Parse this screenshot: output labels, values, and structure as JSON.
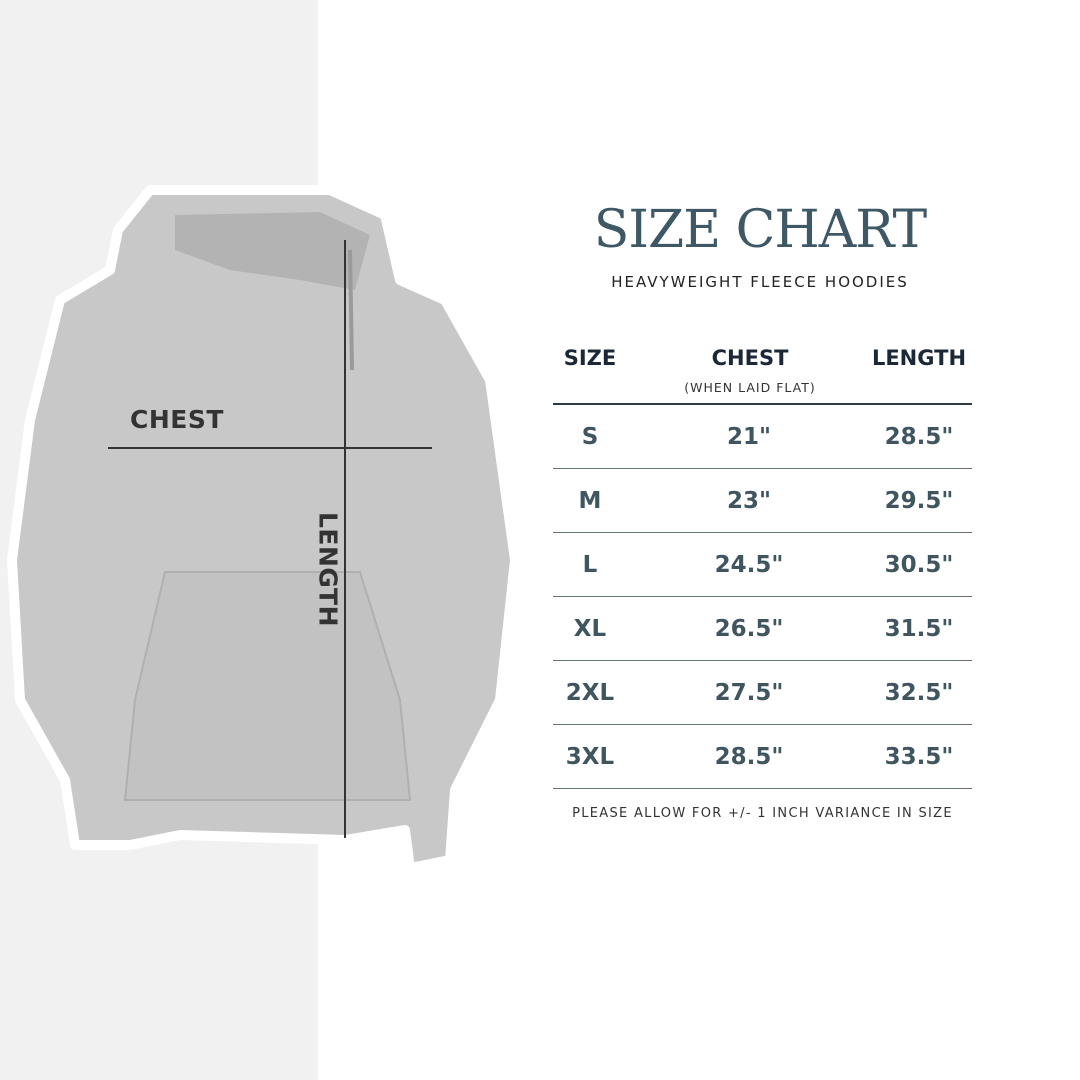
{
  "title": "SIZE CHART",
  "subtitle": "HEAVYWEIGHT FLEECE HOODIES",
  "image_labels": {
    "chest": "CHEST",
    "length": "LENGTH"
  },
  "table": {
    "headers": [
      "SIZE",
      "CHEST",
      "LENGTH"
    ],
    "chest_note": "(WHEN LAID FLAT)",
    "rows": [
      [
        "S",
        "21\"",
        "28.5\""
      ],
      [
        "M",
        "23\"",
        "29.5\""
      ],
      [
        "L",
        "24.5\"",
        "30.5\""
      ],
      [
        "XL",
        "26.5\"",
        "31.5\""
      ],
      [
        "2XL",
        "27.5\"",
        "32.5\""
      ],
      [
        "3XL",
        "28.5\"",
        "33.5\""
      ]
    ]
  },
  "note": "PLEASE ALLOW FOR +/- 1 INCH VARIANCE IN SIZE",
  "colors": {
    "title": "#3f5865",
    "values": "#3f5560",
    "headers": "#1b2838",
    "hoodie": "#c9c9c9"
  }
}
